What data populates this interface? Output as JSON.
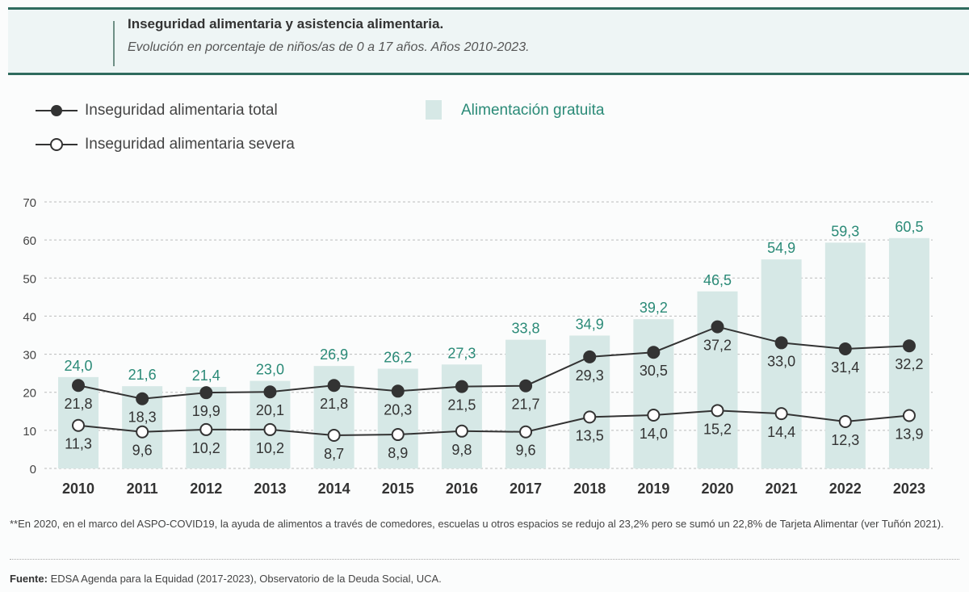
{
  "header": {
    "title": "Inseguridad alimentaria y asistencia alimentaria.",
    "subtitle": "Evolución en porcentaje de niños/as de 0 a 17 años. Años 2010-2023."
  },
  "chart_data": {
    "type": "bar+line",
    "categories": [
      "2010",
      "2011",
      "2012",
      "2013",
      "2014",
      "2015",
      "2016",
      "2017",
      "2018",
      "2019",
      "2020",
      "2021",
      "2022",
      "2023"
    ],
    "series": [
      {
        "name": "Alimentación gratuita",
        "type": "bar",
        "color": "#d6e8e6",
        "label_color": "#2a8a77",
        "values": [
          24.0,
          21.6,
          21.4,
          23.0,
          26.9,
          26.2,
          27.3,
          33.8,
          34.9,
          39.2,
          46.5,
          54.9,
          59.3,
          60.5
        ]
      },
      {
        "name": "Inseguridad alimentaria total",
        "type": "line",
        "marker": "filled",
        "color": "#333333",
        "values": [
          21.8,
          18.3,
          19.9,
          20.1,
          21.8,
          20.3,
          21.5,
          21.7,
          29.3,
          30.5,
          37.2,
          33.0,
          31.4,
          32.2
        ]
      },
      {
        "name": "Inseguridad alimentaria severa",
        "type": "line",
        "marker": "hollow",
        "color": "#333333",
        "values": [
          11.3,
          9.6,
          10.2,
          10.2,
          8.7,
          8.9,
          9.8,
          9.6,
          13.5,
          14.0,
          15.2,
          14.4,
          12.3,
          13.9
        ]
      }
    ],
    "ylim": [
      0,
      70
    ],
    "yticks": [
      0,
      10,
      20,
      30,
      40,
      50,
      60,
      70
    ],
    "grid": true,
    "legend": "top-left"
  },
  "note": "**En 2020, en el marco del ASPO-COVID19, la ayuda de alimentos a través de comedores, escuelas u otros espacios se redujo al 23,2% pero se sumó un 22,8% de Tarjeta Alimentar (ver Tuñón 2021).",
  "source": {
    "label": "Fuente:",
    "text": " EDSA Agenda para la Equidad (2017-2023), Observatorio de la Deuda Social, UCA."
  }
}
